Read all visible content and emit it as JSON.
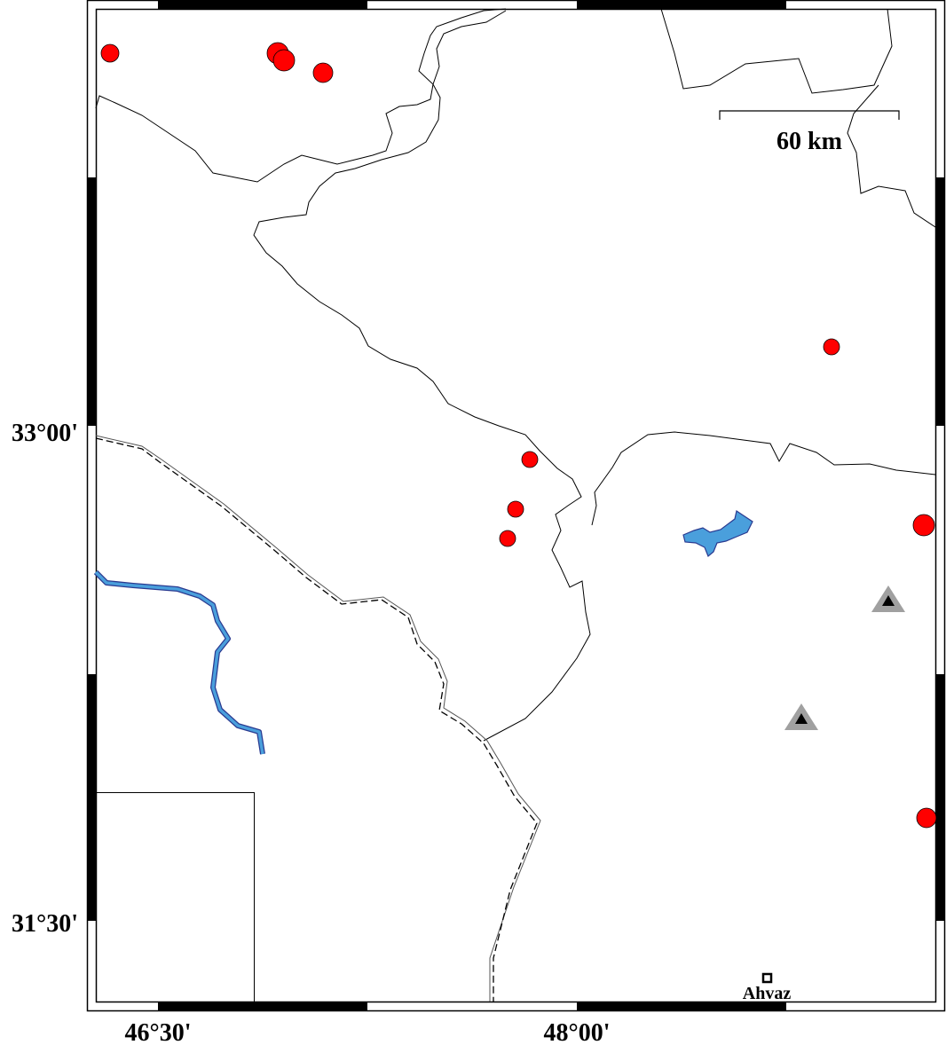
{
  "map": {
    "latitude_labels": [
      "33°00'",
      "31°30'"
    ],
    "longitude_labels": [
      "46°30'",
      "48°00'"
    ],
    "scale_bar": {
      "label": "60 km"
    },
    "city": {
      "name": "Ahvaz",
      "icon": "square-marker-icon"
    },
    "colors": {
      "event": "#ff0000",
      "station_outer": "#a0a0a0",
      "station_inner": "#000000",
      "water": "#4a9fdc",
      "border": "#000000"
    },
    "events_count_shown": 10,
    "stations_count_shown": 2
  }
}
